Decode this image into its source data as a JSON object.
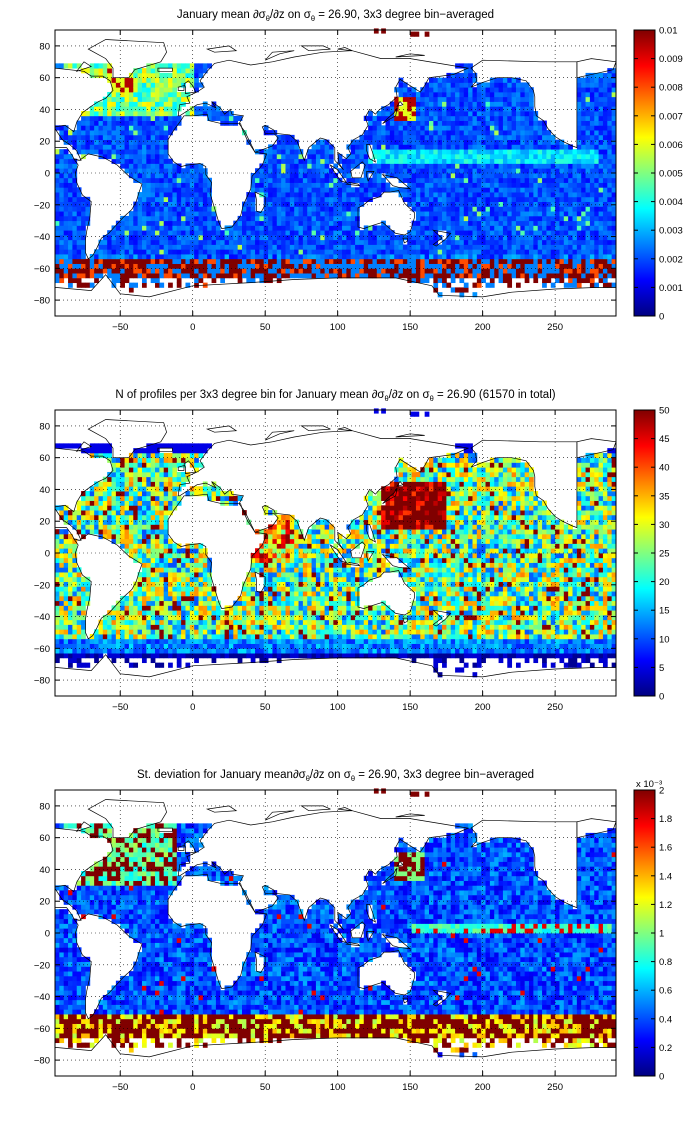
{
  "colors": {
    "land": "#ffffff",
    "coast": "#000000",
    "grid": "#000000",
    "cmap": [
      "#00008f",
      "#0000ff",
      "#0080ff",
      "#00ffff",
      "#80ff80",
      "#ffff00",
      "#ff8000",
      "#ff0000",
      "#800000"
    ]
  },
  "chart_data": [
    {
      "type": "heatmap",
      "title_parts": [
        "January mean ∂σ",
        "θ",
        "/∂z on σ",
        "θ",
        " = 26.90, 3x3 degree bin−averaged"
      ],
      "xlim": [
        -95,
        292
      ],
      "ylim": [
        -90,
        90
      ],
      "xticks": [
        -50,
        0,
        50,
        100,
        150,
        200,
        250
      ],
      "yticks": [
        80,
        60,
        40,
        20,
        0,
        -20,
        -40,
        -60,
        -80
      ],
      "grid": true,
      "colorbar": {
        "range": [
          0,
          0.01
        ],
        "ticks": [
          "0.01",
          "0.009",
          "0.008",
          "0.007",
          "0.006",
          "0.005",
          "0.004",
          "0.003",
          "0.002",
          "0.001",
          "0"
        ],
        "exponent": ""
      },
      "field": "gradient"
    },
    {
      "type": "heatmap",
      "title_parts": [
        "N of profiles per 3x3 degree bin for January mean ∂σ",
        "θ",
        "/∂z on σ",
        "θ",
        " = 26.90 (61570 in total)"
      ],
      "xlim": [
        -95,
        292
      ],
      "ylim": [
        -90,
        90
      ],
      "xticks": [
        -50,
        0,
        50,
        100,
        150,
        200,
        250
      ],
      "yticks": [
        80,
        60,
        40,
        20,
        0,
        -20,
        -40,
        -60,
        -80
      ],
      "grid": true,
      "colorbar": {
        "range": [
          0,
          50
        ],
        "ticks": [
          "50",
          "45",
          "40",
          "35",
          "30",
          "25",
          "20",
          "15",
          "10",
          "5",
          "0"
        ],
        "exponent": ""
      },
      "field": "count"
    },
    {
      "type": "heatmap",
      "title_parts": [
        "St. deviation for January mean∂σ",
        "θ",
        "/∂z on σ",
        "θ",
        " = 26.90, 3x3 degree bin−averaged"
      ],
      "xlim": [
        -95,
        292
      ],
      "ylim": [
        -90,
        90
      ],
      "xticks": [
        -50,
        0,
        50,
        100,
        150,
        200,
        250
      ],
      "yticks": [
        80,
        60,
        40,
        20,
        0,
        -20,
        -40,
        -60,
        -80
      ],
      "grid": true,
      "colorbar": {
        "range": [
          0,
          0.002
        ],
        "ticks": [
          "2",
          "1.8",
          "1.6",
          "1.4",
          "1.2",
          "1",
          "0.8",
          "0.6",
          "0.4",
          "0.2",
          "0"
        ],
        "exponent": "x 10⁻³"
      },
      "field": "stddev"
    }
  ]
}
